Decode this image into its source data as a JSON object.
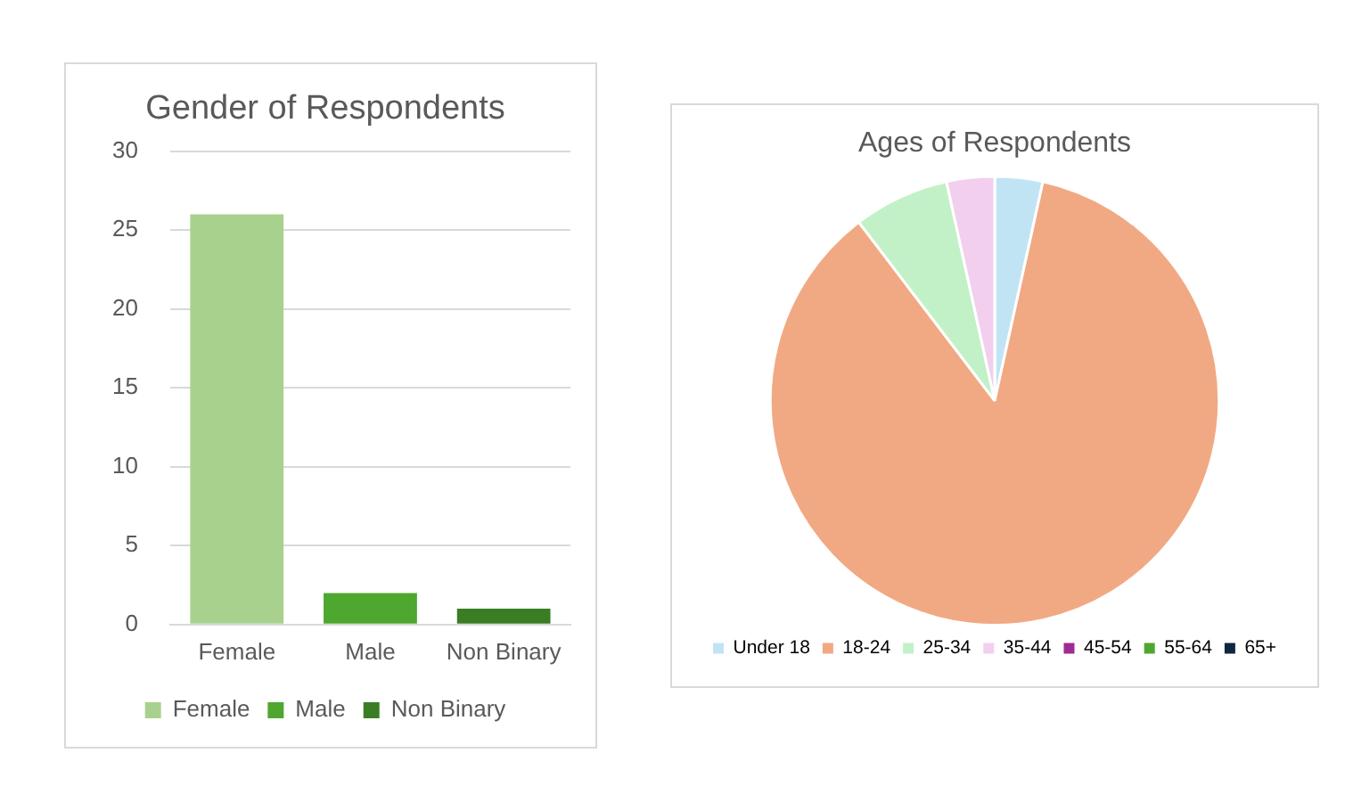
{
  "chart_data": [
    {
      "type": "bar",
      "title": "Gender of Respondents",
      "categories": [
        "Female",
        "Male",
        "Non Binary"
      ],
      "series": [
        {
          "name": "Female",
          "color": "#a9d18e",
          "values": [
            26,
            null,
            null
          ]
        },
        {
          "name": "Male",
          "color": "#4ea72e",
          "values": [
            null,
            2,
            null
          ]
        },
        {
          "name": "Non Binary",
          "color": "#3b7d23",
          "values": [
            null,
            null,
            1
          ]
        }
      ],
      "ylim": [
        0,
        30
      ],
      "yticks": [
        0,
        5,
        10,
        15,
        20,
        25,
        30
      ],
      "grid": "y",
      "legend": "bottom"
    },
    {
      "type": "pie",
      "title": "Ages of Respondents",
      "categories": [
        "Under 18",
        "18-24",
        "25-34",
        "35-44",
        "45-54",
        "55-64",
        "65+"
      ],
      "values": [
        3.45,
        86.2,
        6.9,
        3.45,
        0,
        0,
        0
      ],
      "colors": [
        "#c1e4f5",
        "#f1a983",
        "#c2f1c8",
        "#f2cfee",
        "#a02b93",
        "#4ea72e",
        "#0e2841"
      ],
      "legend": "bottom"
    }
  ]
}
